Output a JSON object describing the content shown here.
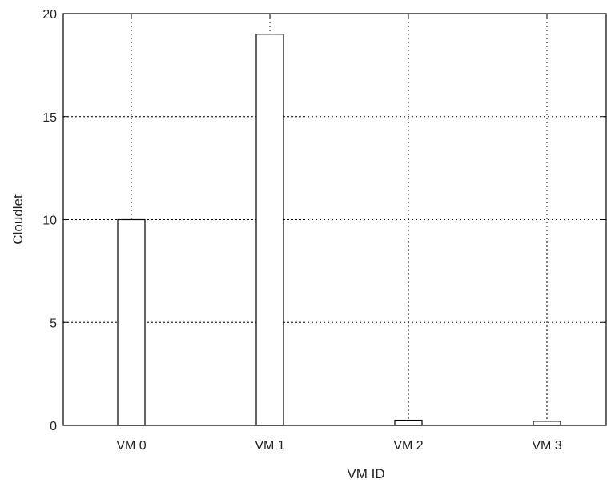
{
  "chart_data": {
    "type": "bar",
    "categories": [
      "VM 0",
      "VM 1",
      "VM 2",
      "VM 3"
    ],
    "values": [
      10,
      19,
      0.25,
      0.2
    ],
    "xlabel": "VM ID",
    "ylabel": "Cloudlet",
    "ylim": [
      0,
      20
    ],
    "yticks": [
      "0",
      "5",
      "10",
      "15",
      "20"
    ],
    "grid": true,
    "bar_fill": "#ffffff",
    "bar_stroke": "#000000",
    "grid_color": "#000000"
  }
}
